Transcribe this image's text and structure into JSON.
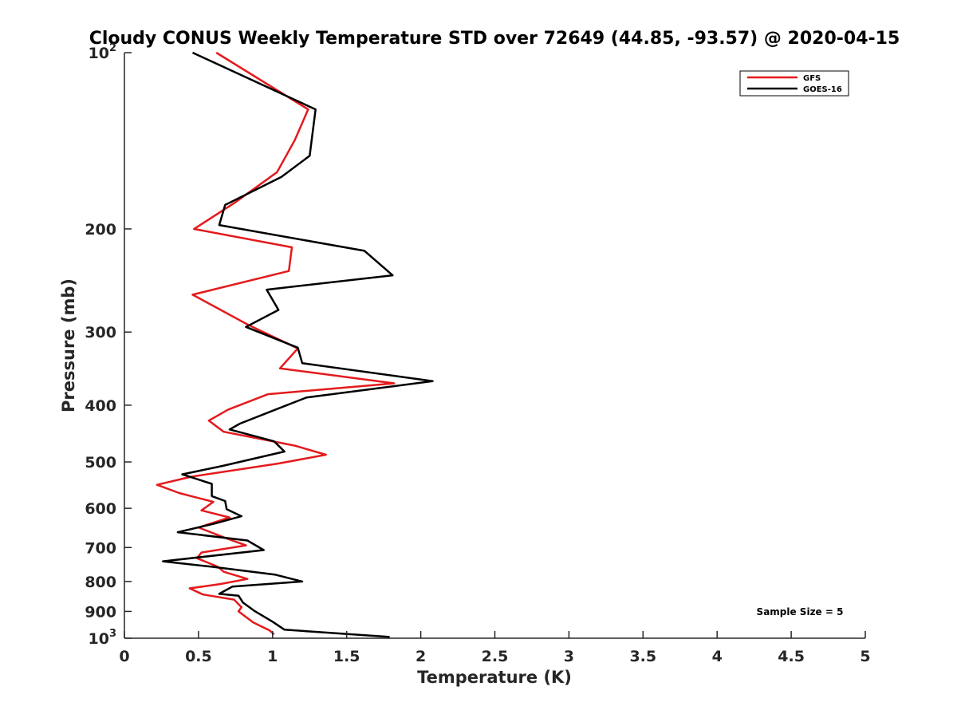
{
  "chart_data": {
    "type": "line",
    "title": "Cloudy CONUS Weekly Temperature STD over 72649 (44.85, -93.57) @ 2020-04-15",
    "xlabel": "Temperature (K)",
    "ylabel": "Pressure (mb)",
    "xlim": [
      0,
      5
    ],
    "ylim": [
      100,
      1000
    ],
    "yscale": "log",
    "y_reversed": true,
    "grid": false,
    "x_ticks": [
      0,
      0.5,
      1,
      1.5,
      2,
      2.5,
      3,
      3.5,
      4,
      4.5,
      5
    ],
    "x_tick_labels": [
      "0",
      "0.5",
      "1",
      "1.5",
      "2",
      "2.5",
      "3",
      "3.5",
      "4",
      "4.5",
      "5"
    ],
    "y_ticks": [
      100,
      200,
      300,
      400,
      500,
      600,
      700,
      800,
      900,
      1000
    ],
    "y_tick_labels": [
      {
        "base": "10",
        "exp": "2"
      },
      {
        "base": "200",
        "exp": ""
      },
      {
        "base": "300",
        "exp": ""
      },
      {
        "base": "400",
        "exp": ""
      },
      {
        "base": "500",
        "exp": ""
      },
      {
        "base": "600",
        "exp": ""
      },
      {
        "base": "700",
        "exp": ""
      },
      {
        "base": "800",
        "exp": ""
      },
      {
        "base": "900",
        "exp": ""
      },
      {
        "base": "10",
        "exp": "3"
      }
    ],
    "legend_position": "top-right",
    "annotation": "Sample Size = 5",
    "series": [
      {
        "name": "GFS",
        "color": "#e41a1c",
        "points": [
          [
            0.62,
            100
          ],
          [
            1.24,
            125
          ],
          [
            1.15,
            141
          ],
          [
            1.03,
            160
          ],
          [
            0.75,
            180
          ],
          [
            0.47,
            200
          ],
          [
            1.13,
            215
          ],
          [
            1.11,
            236
          ],
          [
            0.46,
            259
          ],
          [
            0.84,
            292
          ],
          [
            1.17,
            320
          ],
          [
            1.05,
            346
          ],
          [
            1.82,
            367
          ],
          [
            0.97,
            383
          ],
          [
            0.7,
            407
          ],
          [
            0.57,
            425
          ],
          [
            0.67,
            444
          ],
          [
            1.15,
            469
          ],
          [
            1.36,
            486
          ],
          [
            1.04,
            503
          ],
          [
            0.45,
            530
          ],
          [
            0.22,
            547
          ],
          [
            0.37,
            565
          ],
          [
            0.6,
            585
          ],
          [
            0.52,
            605
          ],
          [
            0.71,
            622
          ],
          [
            0.5,
            647
          ],
          [
            0.68,
            674
          ],
          [
            0.82,
            694
          ],
          [
            0.52,
            714
          ],
          [
            0.49,
            730
          ],
          [
            0.63,
            755
          ],
          [
            0.67,
            770
          ],
          [
            0.83,
            792
          ],
          [
            0.65,
            808
          ],
          [
            0.44,
            822
          ],
          [
            0.53,
            842
          ],
          [
            0.74,
            859
          ],
          [
            0.79,
            885
          ],
          [
            0.77,
            900
          ],
          [
            0.82,
            920
          ],
          [
            0.87,
            940
          ],
          [
            0.98,
            970
          ],
          [
            1.01,
            985
          ]
        ]
      },
      {
        "name": "GOES-16",
        "color": "#000000",
        "points": [
          [
            0.46,
            100
          ],
          [
            1.29,
            125
          ],
          [
            1.25,
            150
          ],
          [
            1.06,
            163
          ],
          [
            0.68,
            182
          ],
          [
            0.64,
            197
          ],
          [
            1.62,
            218
          ],
          [
            1.81,
            240
          ],
          [
            0.96,
            254
          ],
          [
            1.04,
            275
          ],
          [
            0.82,
            294
          ],
          [
            1.17,
            319
          ],
          [
            1.2,
            339
          ],
          [
            2.08,
            364
          ],
          [
            1.23,
            388
          ],
          [
            1.02,
            407
          ],
          [
            0.78,
            430
          ],
          [
            0.71,
            440
          ],
          [
            1.01,
            461
          ],
          [
            1.08,
            480
          ],
          [
            0.66,
            508
          ],
          [
            0.39,
            525
          ],
          [
            0.59,
            545
          ],
          [
            0.59,
            572
          ],
          [
            0.68,
            583
          ],
          [
            0.69,
            602
          ],
          [
            0.79,
            619
          ],
          [
            0.6,
            638
          ],
          [
            0.36,
            659
          ],
          [
            0.83,
            681
          ],
          [
            0.94,
            707
          ],
          [
            0.26,
            739
          ],
          [
            0.59,
            755
          ],
          [
            1.02,
            779
          ],
          [
            1.2,
            800
          ],
          [
            0.73,
            816
          ],
          [
            0.64,
            840
          ],
          [
            0.77,
            846
          ],
          [
            0.8,
            869
          ],
          [
            0.88,
            899
          ],
          [
            1.0,
            937
          ],
          [
            1.08,
            967
          ],
          [
            1.79,
            995
          ]
        ]
      }
    ]
  }
}
